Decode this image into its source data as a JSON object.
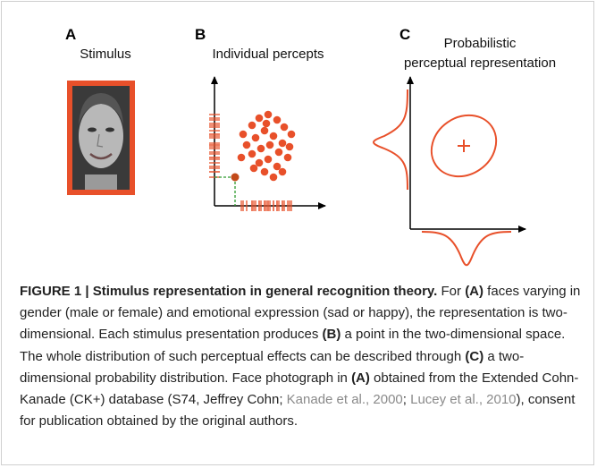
{
  "figure": {
    "panels": [
      {
        "label": "A",
        "title_lines": [
          "Stimulus"
        ]
      },
      {
        "label": "B",
        "title_lines": [
          "Individual percepts"
        ]
      },
      {
        "label": "C",
        "title_lines": [
          "Probabilistic",
          "perceptual representation"
        ]
      }
    ],
    "caption": {
      "segments": [
        {
          "kind": "bold",
          "text": "FIGURE 1 | Stimulus representation in general recognition theory."
        },
        {
          "kind": "plain",
          "text": " For "
        },
        {
          "kind": "bold",
          "text": "(A)"
        },
        {
          "kind": "plain",
          "text": " faces varying in gender (male or female) and emotional expression (sad or happy), the representation is two-dimensional. Each stimulus presentation produces "
        },
        {
          "kind": "bold",
          "text": "(B)"
        },
        {
          "kind": "plain",
          "text": " a point in the two-dimensional space. The whole distribution of such perceptual effects can be described through "
        },
        {
          "kind": "bold",
          "text": "(C)"
        },
        {
          "kind": "plain",
          "text": " a two-dimensional probability distribution. Face photograph in "
        },
        {
          "kind": "bold",
          "text": "(A)"
        },
        {
          "kind": "plain",
          "text": " obtained from the Extended Cohn-Kanade (CK+) database (S74, Jeffrey Cohn; "
        },
        {
          "kind": "link",
          "text": "Kanade et al., 2000"
        },
        {
          "kind": "plain",
          "text": "; "
        },
        {
          "kind": "link",
          "text": "Lucey et al., 2010"
        },
        {
          "kind": "plain",
          "text": "), consent for publication obtained by the original authors."
        }
      ]
    }
  }
}
